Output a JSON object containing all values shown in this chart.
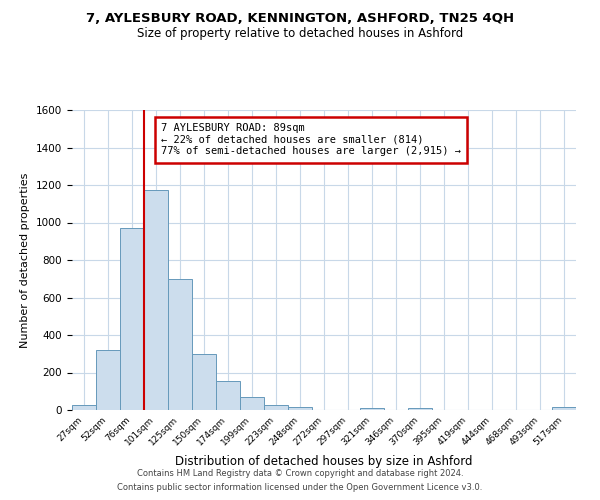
{
  "title1": "7, AYLESBURY ROAD, KENNINGTON, ASHFORD, TN25 4QH",
  "title2": "Size of property relative to detached houses in Ashford",
  "xlabel": "Distribution of detached houses by size in Ashford",
  "ylabel": "Number of detached properties",
  "bar_labels": [
    "27sqm",
    "52sqm",
    "76sqm",
    "101sqm",
    "125sqm",
    "150sqm",
    "174sqm",
    "199sqm",
    "223sqm",
    "248sqm",
    "272sqm",
    "297sqm",
    "321sqm",
    "346sqm",
    "370sqm",
    "395sqm",
    "419sqm",
    "444sqm",
    "468sqm",
    "493sqm",
    "517sqm"
  ],
  "bar_values": [
    25,
    320,
    970,
    1175,
    700,
    300,
    155,
    70,
    25,
    18,
    0,
    0,
    12,
    0,
    10,
    0,
    0,
    0,
    0,
    0,
    15
  ],
  "bar_color": "#ccdded",
  "bar_edge_color": "#6699bb",
  "vline_color": "#cc0000",
  "vline_x": 2.5,
  "ylim": [
    0,
    1600
  ],
  "yticks": [
    0,
    200,
    400,
    600,
    800,
    1000,
    1200,
    1400,
    1600
  ],
  "annotation_title": "7 AYLESBURY ROAD: 89sqm",
  "annotation_line1": "← 22% of detached houses are smaller (814)",
  "annotation_line2": "77% of semi-detached houses are larger (2,915) →",
  "annotation_box_color": "#ffffff",
  "annotation_box_edge": "#cc0000",
  "footer1": "Contains HM Land Registry data © Crown copyright and database right 2024.",
  "footer2": "Contains public sector information licensed under the Open Government Licence v3.0.",
  "background_color": "#ffffff",
  "grid_color": "#c8d8e8"
}
